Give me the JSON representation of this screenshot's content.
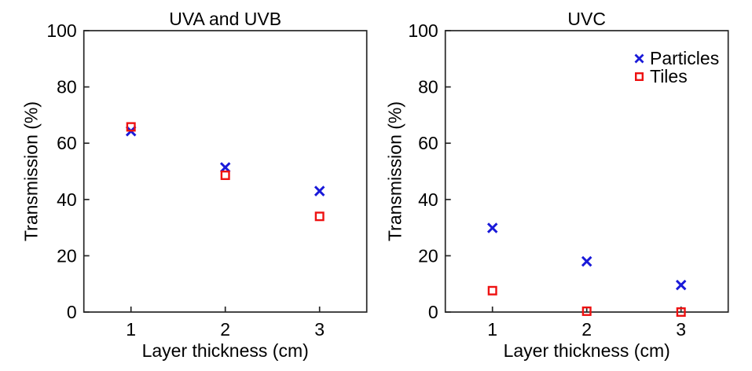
{
  "style": {
    "background": "#ffffff",
    "axis_color": "#262626",
    "text_color": "#000000",
    "particles_color": "#1a1ad9",
    "tiles_color": "#ee1111"
  },
  "chart_data": [
    {
      "type": "scatter",
      "title": "UVA and UVB",
      "xlabel": "Layer thickness (cm)",
      "ylabel": "Transmission (%)",
      "xlim": [
        0.5,
        3.5
      ],
      "ylim": [
        0,
        100
      ],
      "xticks": [
        1,
        2,
        3
      ],
      "yticks": [
        0,
        20,
        40,
        60,
        80,
        100
      ],
      "grid": false,
      "legend": false,
      "series": [
        {
          "name": "Particles",
          "marker": "x",
          "color": "#1a1ad9",
          "x": [
            1,
            2,
            3
          ],
          "values": [
            64.3,
            51.4,
            43.0
          ]
        },
        {
          "name": "Tiles",
          "marker": "open-square",
          "color": "#ee1111",
          "x": [
            1,
            2,
            3
          ],
          "values": [
            65.8,
            48.6,
            34.0
          ]
        }
      ]
    },
    {
      "type": "scatter",
      "title": "UVC",
      "xlabel": "Layer thickness (cm)",
      "ylabel": "Transmission (%)",
      "xlim": [
        0.5,
        3.5
      ],
      "ylim": [
        0,
        100
      ],
      "xticks": [
        1,
        2,
        3
      ],
      "yticks": [
        0,
        20,
        40,
        60,
        80,
        100
      ],
      "grid": false,
      "legend": {
        "position": "top-right",
        "entries": [
          "Particles",
          "Tiles"
        ]
      },
      "series": [
        {
          "name": "Particles",
          "marker": "x",
          "color": "#1a1ad9",
          "x": [
            1,
            2,
            3
          ],
          "values": [
            29.9,
            18.0,
            9.6
          ]
        },
        {
          "name": "Tiles",
          "marker": "open-square",
          "color": "#ee1111",
          "x": [
            1,
            2,
            3
          ],
          "values": [
            7.6,
            0.3,
            0.0
          ]
        }
      ]
    }
  ]
}
